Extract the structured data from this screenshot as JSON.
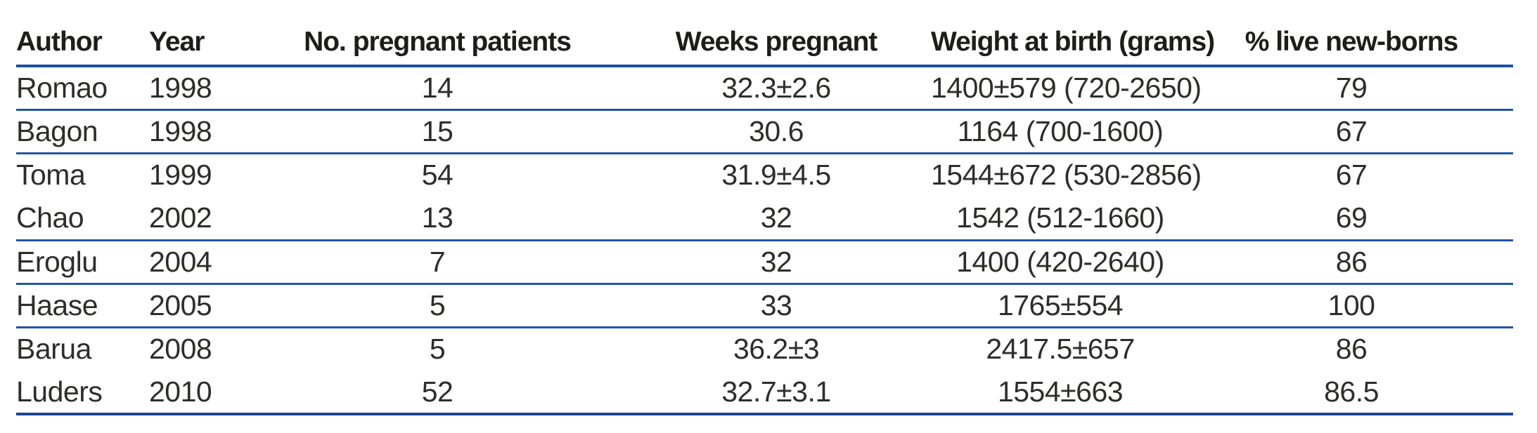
{
  "table": {
    "headers": [
      "Author",
      "Year",
      "No. pregnant patients",
      "Weeks pregnant",
      "Weight at birth (grams)",
      "% live new-borns"
    ],
    "rows": [
      {
        "author": "Romao",
        "year": "1998",
        "patients": "14",
        "weeks": "32.3±2.6",
        "weight": "1400±579 (720-2650)",
        "live_pct": "79"
      },
      {
        "author": "Bagon",
        "year": "1998",
        "patients": "15",
        "weeks": "30.6",
        "weight": "1164 (700-1600)",
        "live_pct": "67"
      },
      {
        "author": "Toma",
        "year": "1999",
        "patients": "54",
        "weeks": "31.9±4.5",
        "weight": "1544±672 (530-2856)",
        "live_pct": "67"
      },
      {
        "author": "Chao",
        "year": "2002",
        "patients": "13",
        "weeks": "32",
        "weight": "1542 (512-1660)",
        "live_pct": "69"
      },
      {
        "author": "Eroglu",
        "year": "2004",
        "patients": "7",
        "weeks": "32",
        "weight": "1400 (420-2640)",
        "live_pct": "86"
      },
      {
        "author": "Haase",
        "year": "2005",
        "patients": "5",
        "weeks": "33",
        "weight": "1765±554",
        "live_pct": "100"
      },
      {
        "author": "Barua",
        "year": "2008",
        "patients": "5",
        "weeks": "36.2±3",
        "weight": "2417.5±657",
        "live_pct": "86"
      },
      {
        "author": "Luders",
        "year": "2010",
        "patients": "52",
        "weeks": "32.7±3.1",
        "weight": "1554±663",
        "live_pct": "86.5"
      }
    ],
    "colors": {
      "rule_blue": "#2155a8",
      "header_rule_blue": "#1e4fa3",
      "bottom_rule_blue": "#1c4496",
      "text": "#2d2d2b"
    }
  }
}
